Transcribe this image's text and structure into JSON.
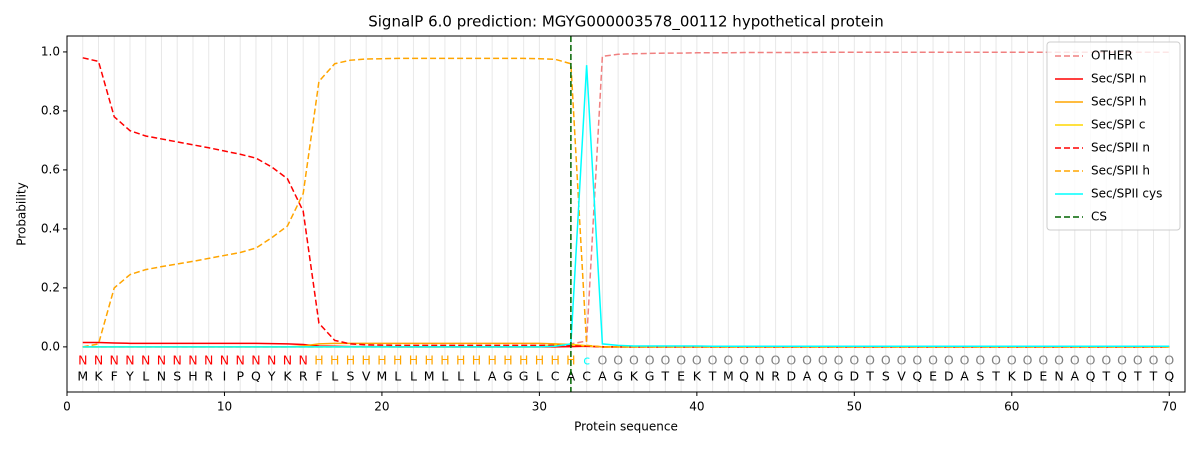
{
  "chart_data": {
    "type": "line",
    "title": "SignalP 6.0 prediction: MGYG000003578_00112 hypothetical protein",
    "xlabel": "Protein sequence",
    "ylabel": "Probability",
    "xlim": [
      0,
      71
    ],
    "ylim": [
      -0.153,
      1.054
    ],
    "xticks": [
      0,
      10,
      20,
      30,
      40,
      50,
      60,
      70
    ],
    "yticks": [
      {
        "value": 0,
        "label": "0.0"
      },
      {
        "value": 0.2,
        "label": "0.2"
      },
      {
        "value": 0.4,
        "label": "0.4"
      },
      {
        "value": 0.6,
        "label": "0.6"
      },
      {
        "value": 0.8,
        "label": "0.8"
      },
      {
        "value": 1.0,
        "label": "1.0"
      }
    ],
    "position_grid": true,
    "legend": "upper right",
    "x": [
      1,
      2,
      3,
      4,
      5,
      6,
      7,
      8,
      9,
      10,
      11,
      12,
      13,
      14,
      15,
      16,
      17,
      18,
      19,
      20,
      21,
      22,
      23,
      24,
      25,
      26,
      27,
      28,
      29,
      30,
      31,
      32,
      33,
      34,
      35,
      36,
      37,
      38,
      39,
      40,
      41,
      42,
      43,
      44,
      45,
      46,
      47,
      48,
      49,
      50,
      51,
      52,
      53,
      54,
      55,
      56,
      57,
      58,
      59,
      60,
      61,
      62,
      63,
      64,
      65,
      66,
      67,
      68,
      69,
      70
    ],
    "sequence": [
      "M",
      "K",
      "F",
      "Y",
      "L",
      "N",
      "S",
      "H",
      "R",
      "I",
      "P",
      "Q",
      "Y",
      "K",
      "R",
      "F",
      "L",
      "S",
      "V",
      "M",
      "L",
      "L",
      "M",
      "L",
      "L",
      "L",
      "A",
      "G",
      "G",
      "L",
      "C",
      "A",
      "C",
      "A",
      "G",
      "K",
      "G",
      "T",
      "E",
      "K",
      "T",
      "M",
      "Q",
      "N",
      "R",
      "D",
      "A",
      "Q",
      "G",
      "D",
      "T",
      "S",
      "V",
      "Q",
      "E",
      "D",
      "A",
      "S",
      "T",
      "K",
      "D",
      "E",
      "N",
      "A",
      "Q",
      "T",
      "Q",
      "T",
      "T",
      "Q"
    ],
    "regions": [
      "N",
      "N",
      "N",
      "N",
      "N",
      "N",
      "N",
      "N",
      "N",
      "N",
      "N",
      "N",
      "N",
      "N",
      "N",
      "H",
      "H",
      "H",
      "H",
      "H",
      "H",
      "H",
      "H",
      "H",
      "H",
      "H",
      "H",
      "H",
      "H",
      "H",
      "H",
      "H",
      "c",
      "O",
      "O",
      "O",
      "O",
      "O",
      "O",
      "O",
      "O",
      "O",
      "O",
      "O",
      "O",
      "O",
      "O",
      "O",
      "O",
      "O",
      "O",
      "O",
      "O",
      "O",
      "O",
      "O",
      "O",
      "O",
      "O",
      "O",
      "O",
      "O",
      "O",
      "O",
      "O",
      "O",
      "O",
      "O",
      "O",
      "O"
    ],
    "region_colors": {
      "N": "#ff0000",
      "H": "#ffa500",
      "c": "#00ffff",
      "O": "#808080"
    },
    "series": [
      {
        "name": "OTHER",
        "color": "#f08080",
        "dash": true,
        "values": [
          0,
          0,
          0,
          0,
          0,
          0,
          0,
          0,
          0,
          0,
          0,
          0,
          0,
          0,
          0,
          0,
          0,
          0,
          0,
          0,
          0,
          0,
          0,
          0,
          0,
          0,
          0,
          0,
          0,
          0,
          0,
          0.01,
          0.02,
          0.985,
          0.992,
          0.994,
          0.995,
          0.996,
          0.996,
          0.997,
          0.997,
          0.997,
          0.998,
          0.998,
          0.998,
          0.998,
          0.998,
          0.999,
          0.999,
          0.999,
          0.999,
          0.999,
          0.999,
          0.999,
          0.999,
          0.999,
          0.999,
          0.999,
          0.999,
          0.999,
          0.999,
          0.999,
          0.999,
          0.999,
          0.999,
          0.999,
          0.999,
          0.999,
          0.999,
          0.999
        ]
      },
      {
        "name": "Sec/SPI n",
        "color": "#ff0000",
        "dash": false,
        "values": [
          0.015,
          0.015,
          0.013,
          0.012,
          0.012,
          0.012,
          0.012,
          0.012,
          0.012,
          0.012,
          0.012,
          0.012,
          0.011,
          0.01,
          0.008,
          0.003,
          0.002,
          0.001,
          0.001,
          0.001,
          0,
          0,
          0,
          0,
          0,
          0,
          0,
          0,
          0,
          0,
          0,
          0.001,
          0.002,
          0,
          0,
          0,
          0,
          0,
          0,
          0,
          0,
          0,
          0,
          0,
          0,
          0,
          0,
          0,
          0,
          0,
          0,
          0,
          0,
          0,
          0,
          0,
          0,
          0,
          0,
          0,
          0,
          0,
          0,
          0,
          0,
          0,
          0,
          0,
          0,
          0
        ]
      },
      {
        "name": "Sec/SPI h",
        "color": "#ffa500",
        "dash": false,
        "values": [
          0,
          0,
          0,
          0,
          0,
          0,
          0,
          0,
          0,
          0,
          0,
          0,
          0,
          0,
          0.003,
          0.01,
          0.012,
          0.012,
          0.012,
          0.012,
          0.012,
          0.012,
          0.012,
          0.012,
          0.012,
          0.012,
          0.012,
          0.012,
          0.012,
          0.012,
          0.01,
          0.008,
          0.004,
          0,
          0,
          0,
          0,
          0,
          0,
          0,
          0,
          0,
          0,
          0,
          0,
          0,
          0,
          0,
          0,
          0,
          0,
          0,
          0,
          0,
          0,
          0,
          0,
          0,
          0,
          0,
          0,
          0,
          0,
          0,
          0,
          0,
          0,
          0,
          0,
          0
        ]
      },
      {
        "name": "Sec/SPI c",
        "color": "#ffd700",
        "dash": false,
        "values": [
          0,
          0,
          0,
          0,
          0,
          0,
          0,
          0,
          0,
          0,
          0,
          0,
          0,
          0,
          0,
          0,
          0,
          0,
          0,
          0,
          0,
          0,
          0,
          0,
          0,
          0,
          0,
          0,
          0,
          0,
          0.006,
          0.008,
          0.003,
          0,
          0,
          0,
          0,
          0,
          0,
          0,
          0,
          0,
          0,
          0,
          0,
          0,
          0,
          0,
          0,
          0,
          0,
          0,
          0,
          0,
          0,
          0,
          0,
          0,
          0,
          0,
          0,
          0,
          0,
          0,
          0,
          0,
          0,
          0,
          0,
          0
        ]
      },
      {
        "name": "Sec/SPII n",
        "color": "#ff0000",
        "dash": true,
        "values": [
          0.98,
          0.968,
          0.78,
          0.733,
          0.715,
          0.705,
          0.695,
          0.685,
          0.675,
          0.664,
          0.653,
          0.64,
          0.61,
          0.57,
          0.46,
          0.08,
          0.022,
          0.01,
          0.007,
          0.006,
          0.005,
          0.005,
          0.005,
          0.005,
          0.005,
          0.005,
          0.005,
          0.005,
          0.005,
          0.005,
          0.005,
          0.004,
          0.002,
          0,
          0,
          0,
          0,
          0,
          0,
          0,
          0,
          0,
          0,
          0,
          0,
          0,
          0,
          0,
          0,
          0,
          0,
          0,
          0,
          0,
          0,
          0,
          0,
          0,
          0,
          0,
          0,
          0,
          0,
          0,
          0,
          0,
          0,
          0,
          0,
          0
        ]
      },
      {
        "name": "Sec/SPII h",
        "color": "#ffa500",
        "dash": true,
        "values": [
          0,
          0.01,
          0.2,
          0.245,
          0.262,
          0.272,
          0.281,
          0.29,
          0.3,
          0.31,
          0.32,
          0.335,
          0.37,
          0.41,
          0.52,
          0.9,
          0.96,
          0.972,
          0.976,
          0.977,
          0.978,
          0.978,
          0.978,
          0.978,
          0.978,
          0.978,
          0.978,
          0.978,
          0.978,
          0.977,
          0.975,
          0.96,
          0.005,
          0,
          0,
          0,
          0,
          0,
          0,
          0,
          0,
          0,
          0,
          0,
          0,
          0,
          0,
          0,
          0,
          0,
          0,
          0,
          0,
          0,
          0,
          0,
          0,
          0,
          0,
          0,
          0,
          0,
          0,
          0,
          0,
          0,
          0,
          0,
          0,
          0
        ]
      },
      {
        "name": "Sec/SPII cys",
        "color": "#00ffff",
        "dash": false,
        "values": [
          0,
          0,
          0,
          0,
          0,
          0,
          0,
          0,
          0,
          0,
          0,
          0,
          0,
          0,
          0,
          0,
          0,
          0,
          0,
          0,
          0,
          0,
          0,
          0,
          0,
          0,
          0,
          0,
          0,
          0,
          0.002,
          0.01,
          0.955,
          0.01,
          0.005,
          0.003,
          0.003,
          0.003,
          0.003,
          0.003,
          0.002,
          0.002,
          0.002,
          0.002,
          0.002,
          0.002,
          0.002,
          0.002,
          0.002,
          0.002,
          0.002,
          0.002,
          0.002,
          0.002,
          0.002,
          0.002,
          0.002,
          0.002,
          0.002,
          0.002,
          0.002,
          0.002,
          0.002,
          0.002,
          0.002,
          0.002,
          0.002,
          0.002,
          0.002,
          0.002
        ]
      }
    ],
    "cs": {
      "name": "CS",
      "color": "#006400",
      "x": 32
    }
  }
}
